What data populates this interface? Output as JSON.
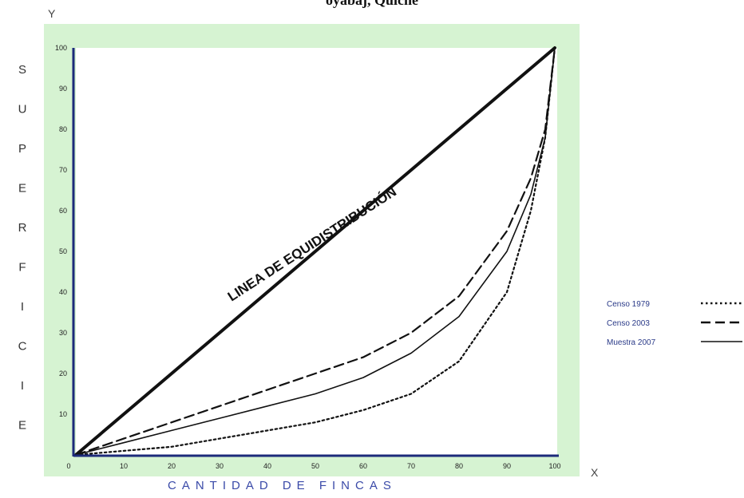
{
  "chart_data": {
    "type": "line",
    "title": "oyabaj, Quiché",
    "x_axis_letter": "X",
    "y_axis_letter": "Y",
    "xlabel": "CANTIDAD DE FINCAS",
    "ylabel": "SUPERFICIE",
    "xlim": [
      0,
      100
    ],
    "ylim": [
      0,
      100
    ],
    "x_ticks": [
      "0",
      "10",
      "20",
      "30",
      "40",
      "50",
      "60",
      "70",
      "80",
      "90",
      "100"
    ],
    "y_ticks": [
      "10",
      "20",
      "30",
      "40",
      "50",
      "60",
      "70",
      "80",
      "90",
      "100"
    ],
    "equidistribution": {
      "label": "LINEA DE EQUIDISTRIBUCIÓN",
      "x": [
        0,
        100
      ],
      "y": [
        0,
        100
      ]
    },
    "series": [
      {
        "name": "Censo 1979",
        "style": "dotted",
        "x": [
          0,
          10,
          20,
          30,
          40,
          50,
          60,
          70,
          80,
          90,
          95,
          98,
          100
        ],
        "y": [
          0,
          1,
          2,
          4,
          6,
          8,
          11,
          15,
          23,
          40,
          60,
          78,
          100
        ]
      },
      {
        "name": "Censo 2003",
        "style": "dashed",
        "x": [
          0,
          10,
          20,
          30,
          40,
          50,
          60,
          70,
          80,
          90,
          95,
          98,
          100
        ],
        "y": [
          0,
          4,
          8,
          12,
          16,
          20,
          24,
          30,
          39,
          55,
          68,
          80,
          100
        ]
      },
      {
        "name": "Muestra 2007",
        "style": "solid",
        "x": [
          0,
          10,
          20,
          30,
          40,
          50,
          60,
          70,
          80,
          90,
          95,
          98,
          100
        ],
        "y": [
          0,
          3,
          6,
          9,
          12,
          15,
          19,
          25,
          34,
          50,
          64,
          78,
          100
        ]
      }
    ],
    "legend_position": "right",
    "colors": {
      "plot_frame": "#d6f3d2",
      "axis": "#1c2a7a",
      "curve": "#111111",
      "xlabel": "#3a4aa8",
      "legend_text": "#2a3a88"
    }
  }
}
